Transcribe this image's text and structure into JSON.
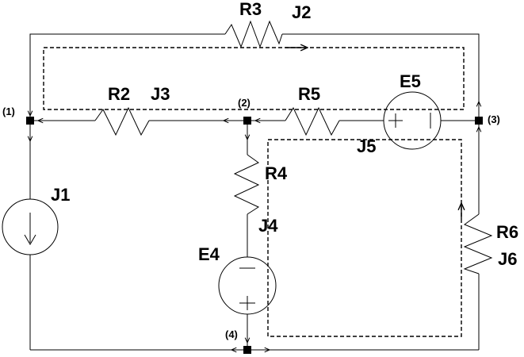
{
  "components": {
    "R3": "R3",
    "J2": "J2",
    "R2": "R2",
    "J3": "J3",
    "R5": "R5",
    "E5": "E5",
    "J5": "J5",
    "R4": "R4",
    "J4": "J4",
    "E4": "E4",
    "J1": "J1",
    "R6": "R6",
    "J6": "J6"
  },
  "nodes": {
    "n1": "(1)",
    "n2": "(2)",
    "n3": "(3)",
    "n4": "(4)"
  }
}
